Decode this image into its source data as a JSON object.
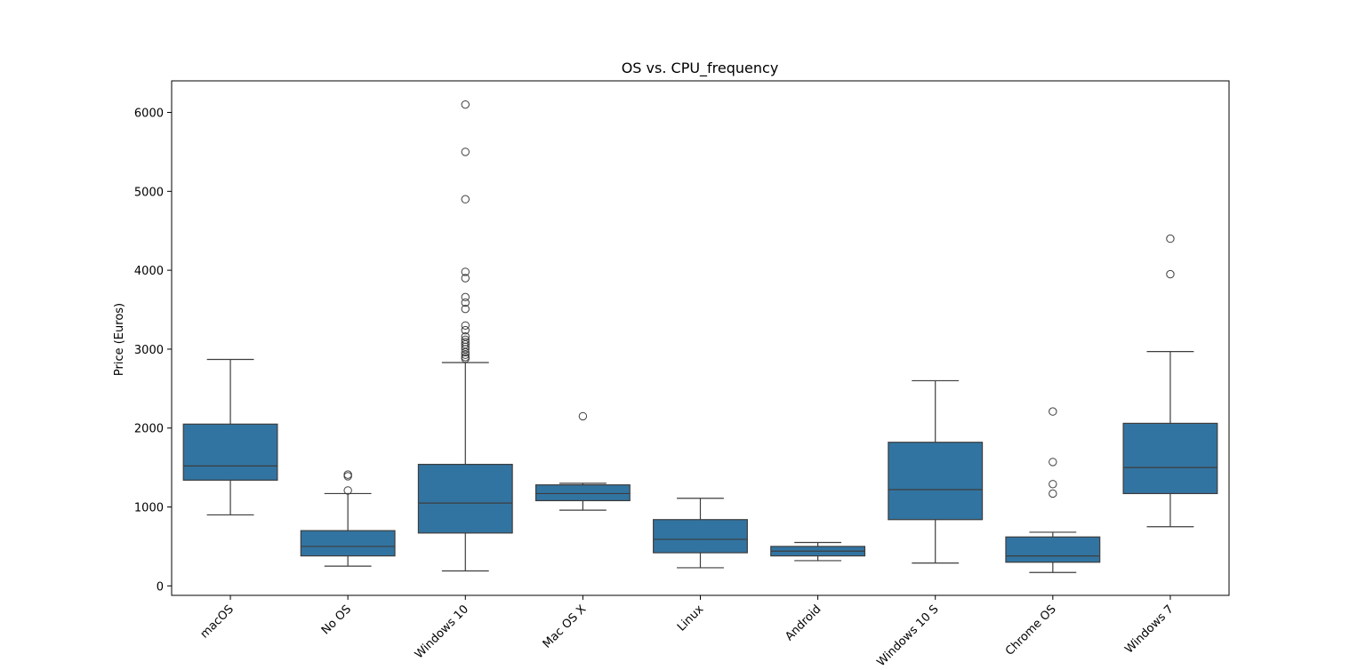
{
  "chart_data": {
    "type": "box",
    "title": "OS vs. CPU_frequency",
    "xlabel": "",
    "ylabel": "Price (Euros)",
    "ylim": [
      -120,
      6400
    ],
    "yticks": [
      0,
      1000,
      2000,
      3000,
      4000,
      5000,
      6000
    ],
    "color": "#3274a1",
    "line_color": "#3d3d3d",
    "categories": [
      "macOS",
      "No OS",
      "Windows 10",
      "Mac OS X",
      "Linux",
      "Android",
      "Windows 10 S",
      "Chrome OS",
      "Windows 7"
    ],
    "boxes": [
      {
        "category": "macOS",
        "whisker_low": 900,
        "q1": 1340,
        "median": 1520,
        "q3": 2050,
        "whisker_high": 2870,
        "outliers": []
      },
      {
        "category": "No OS",
        "whisker_low": 250,
        "q1": 380,
        "median": 500,
        "q3": 700,
        "whisker_high": 1170,
        "outliers": [
          1210,
          1390,
          1410
        ]
      },
      {
        "category": "Windows 10",
        "whisker_low": 190,
        "q1": 670,
        "median": 1050,
        "q3": 1540,
        "whisker_high": 2830,
        "outliers": [
          2880,
          2900,
          2930,
          2960,
          3000,
          3030,
          3060,
          3090,
          3120,
          3160,
          3240,
          3300,
          3510,
          3590,
          3660,
          3900,
          3980,
          4900,
          5500,
          6100
        ]
      },
      {
        "category": "Mac OS X",
        "whisker_low": 960,
        "q1": 1080,
        "median": 1170,
        "q3": 1280,
        "whisker_high": 1300,
        "outliers": [
          2150
        ]
      },
      {
        "category": "Linux",
        "whisker_low": 230,
        "q1": 420,
        "median": 590,
        "q3": 840,
        "whisker_high": 1110,
        "outliers": []
      },
      {
        "category": "Android",
        "whisker_low": 320,
        "q1": 380,
        "median": 440,
        "q3": 500,
        "whisker_high": 550,
        "outliers": []
      },
      {
        "category": "Windows 10 S",
        "whisker_low": 290,
        "q1": 840,
        "median": 1220,
        "q3": 1820,
        "whisker_high": 2600,
        "outliers": []
      },
      {
        "category": "Chrome OS",
        "whisker_low": 170,
        "q1": 300,
        "median": 380,
        "q3": 620,
        "whisker_high": 680,
        "outliers": [
          1170,
          1290,
          1570,
          2210
        ]
      },
      {
        "category": "Windows 7",
        "whisker_low": 750,
        "q1": 1170,
        "median": 1500,
        "q3": 2060,
        "whisker_high": 2970,
        "outliers": [
          3950,
          4400
        ]
      }
    ],
    "grid": false,
    "legend": "none"
  }
}
